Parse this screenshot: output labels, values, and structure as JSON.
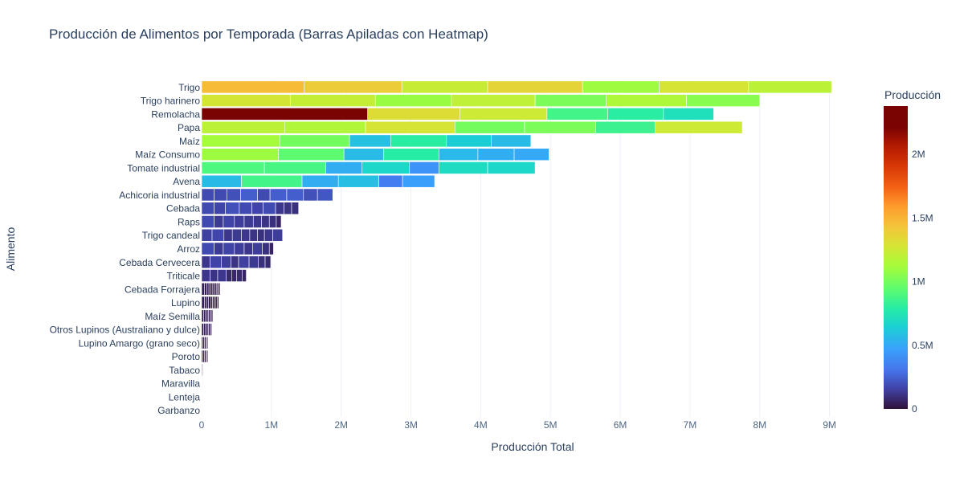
{
  "chart_data": {
    "type": "bar",
    "orientation": "horizontal",
    "barmode": "stack",
    "title": "Producción de Alimentos por Temporada (Barras Apiladas con Heatmap)",
    "xlabel": "Producción Total",
    "ylabel": "Alimento",
    "xlim": [
      0,
      9500000
    ],
    "x_ticks": [
      0,
      1000000,
      2000000,
      3000000,
      4000000,
      5000000,
      6000000,
      7000000,
      8000000,
      9000000
    ],
    "x_tick_labels": [
      "0",
      "1M",
      "2M",
      "3M",
      "4M",
      "5M",
      "6M",
      "7M",
      "8M",
      "9M"
    ],
    "grid": "vertical",
    "colorscale": "Turbo",
    "colorbar": {
      "title": "Producción",
      "range": [
        0,
        2380000
      ],
      "ticks": [
        0,
        500000,
        1000000,
        1500000,
        2000000
      ],
      "tick_labels": [
        "0",
        "0.5M",
        "1M",
        "1.5M",
        "2M"
      ]
    },
    "categories": [
      "Trigo",
      "Trigo harinero",
      "Remolacha",
      "Papa",
      "Maíz",
      "Maíz Consumo",
      "Tomate industrial",
      "Avena",
      "Achicoria industrial",
      "Cebada",
      "Raps",
      "Trigo candeal",
      "Arroz",
      "Cebada  Cervecera",
      "Triticale",
      "Cebada  Forrajera",
      "Lupino",
      "Maíz Semilla",
      "Otros Lupinos (Australiano y dulce)",
      "Lupino Amargo (grano seco)",
      "Poroto",
      "Tabaco",
      "Maravilla",
      "Lenteja",
      "Garbanzo"
    ],
    "segments": [
      [
        1470000,
        1400000,
        1230000,
        1360000,
        1100000,
        1280000,
        1190000
      ],
      [
        1270000,
        1220000,
        1090000,
        1200000,
        1020000,
        1150000,
        1050000
      ],
      [
        2380000,
        1320000,
        1250000,
        870000,
        800000,
        720000
      ],
      [
        1190000,
        1160000,
        1280000,
        1000000,
        1020000,
        850000,
        1250000
      ],
      [
        1120000,
        1000000,
        590000,
        800000,
        640000,
        570000
      ],
      [
        1100000,
        940000,
        570000,
        790000,
        560000,
        520000,
        500000
      ],
      [
        900000,
        880000,
        520000,
        680000,
        420000,
        700000,
        680000
      ],
      [
        570000,
        870000,
        520000,
        580000,
        340000,
        460000
      ],
      [
        180000,
        180000,
        200000,
        240000,
        180000,
        240000,
        240000,
        200000,
        220000
      ],
      [
        180000,
        160000,
        200000,
        180000,
        160000,
        180000,
        120000,
        110000,
        100000
      ],
      [
        180000,
        130000,
        160000,
        140000,
        130000,
        120000,
        110000,
        100000,
        70000
      ],
      [
        150000,
        170000,
        120000,
        130000,
        120000,
        110000,
        100000,
        120000,
        140000
      ],
      [
        180000,
        130000,
        160000,
        140000,
        120000,
        140000,
        100000,
        60000
      ],
      [
        120000,
        160000,
        140000,
        110000,
        150000,
        130000,
        100000,
        80000
      ],
      [
        120000,
        110000,
        120000,
        80000,
        70000,
        80000,
        60000
      ],
      [
        40000,
        35000,
        30000,
        30000,
        25000,
        25000,
        25000,
        20000,
        20000,
        15000
      ],
      [
        40000,
        30000,
        30000,
        30000,
        25000,
        25000,
        25000,
        20000,
        20000
      ],
      [
        30000,
        25000,
        25000,
        20000,
        20000,
        20000,
        20000
      ],
      [
        30000,
        25000,
        25000,
        20000,
        20000,
        20000,
        10000
      ],
      [
        20000,
        20000,
        20000,
        15000,
        15000
      ],
      [
        20000,
        20000,
        20000,
        15000,
        15000
      ],
      [
        10000,
        8000,
        6000
      ],
      [
        4000,
        3000,
        3000
      ],
      [
        2000,
        2000
      ],
      [
        1000,
        1000
      ]
    ]
  }
}
